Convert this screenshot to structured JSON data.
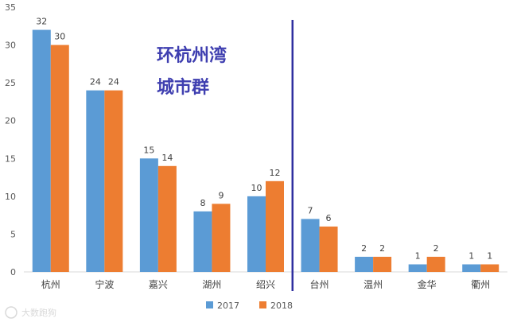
{
  "chart_data": {
    "type": "bar",
    "categories": [
      "杭州",
      "宁波",
      "嘉兴",
      "湖州",
      "绍兴",
      "台州",
      "温州",
      "金华",
      "衢州"
    ],
    "series": [
      {
        "name": "2017",
        "values": [
          32,
          24,
          15,
          8,
          10,
          7,
          2,
          1,
          1
        ],
        "color": "#5B9BD5"
      },
      {
        "name": "2018",
        "values": [
          30,
          24,
          14,
          9,
          12,
          6,
          2,
          2,
          1
        ],
        "color": "#ED7D31"
      }
    ],
    "ylim": [
      0,
      35
    ],
    "yticks": [
      0,
      5,
      10,
      15,
      20,
      25,
      30,
      35
    ],
    "grid": false,
    "legend_position": "bottom",
    "annotation": {
      "lines": [
        "环杭州湾",
        "城市群"
      ],
      "color": "#3F3FB0"
    },
    "divider": {
      "after_category_index": 4,
      "color": "#2F2FA0"
    },
    "watermark": "大数跑狗"
  }
}
